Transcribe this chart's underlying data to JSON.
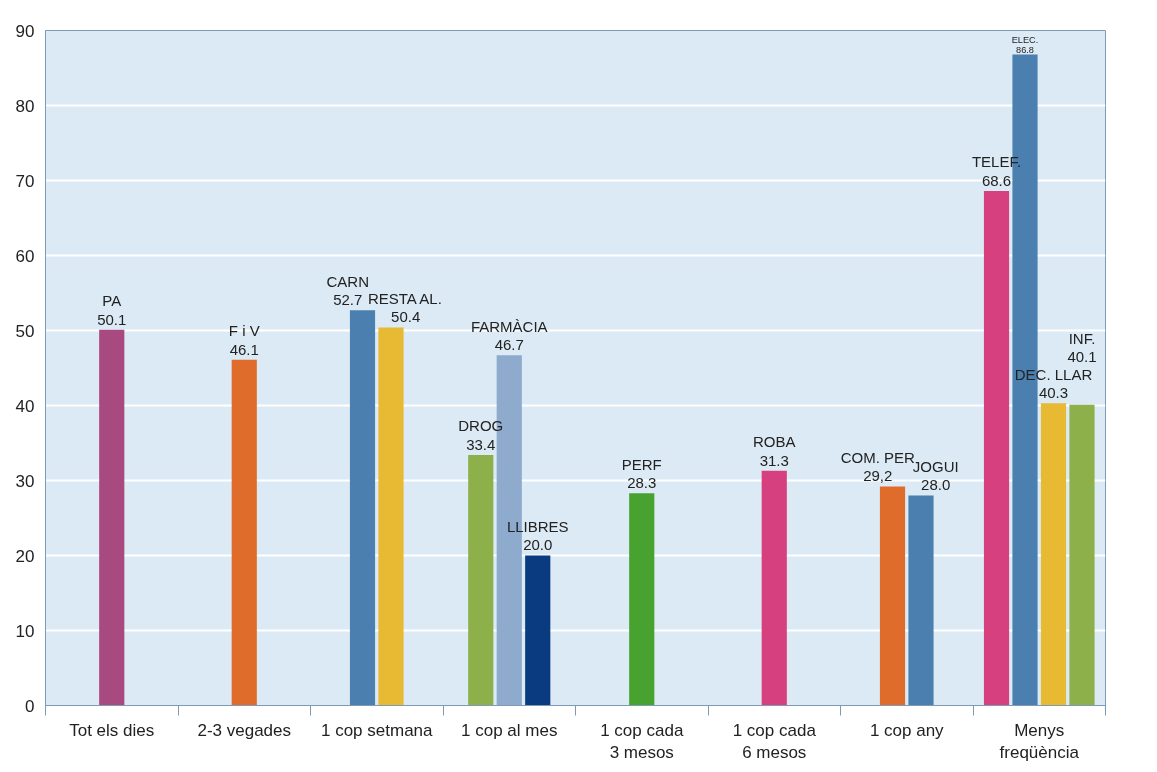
{
  "chart_data": {
    "type": "bar",
    "categories": [
      "Tot els dies",
      "2-3 vegades",
      "1 cop setmana",
      "1 cop al mes",
      "1 cop cada\n3 mesos",
      "1 cop cada\n6 mesos",
      "1 cop any",
      "Menys\nfreqüència"
    ],
    "series": [
      {
        "values": [
          50.1,
          46.1,
          52.7,
          33.4,
          28.3,
          31.3,
          29.2,
          68.6
        ],
        "colors": [
          "#a8497f",
          "#e06c2c",
          "#4a7fb0",
          "#8db04a",
          "#47a22f",
          "#d6407e",
          "#e06c2c",
          "#d6407e"
        ],
        "value_labels": [
          "PA\n50.1",
          "F i V\n46.1",
          "CARN\n52.7",
          "DROG\n33.4",
          "PERF\n28.3",
          "ROBA\n31.3",
          "COM. PER\n29,2",
          "TELEF.\n68.6"
        ]
      },
      {
        "values": [
          null,
          null,
          50.4,
          46.7,
          null,
          null,
          28.0,
          86.8
        ],
        "colors": [
          null,
          null,
          "#e8b932",
          "#8eaacc",
          null,
          null,
          "#4a7fb0",
          "#4a7fb0"
        ],
        "value_labels": [
          null,
          null,
          "RESTA AL.\n50.4",
          "FARMÀCIA\n46.7",
          null,
          null,
          "JOGUI\n28.0",
          "ELEC.\n86.8"
        ]
      },
      {
        "values": [
          null,
          null,
          null,
          20.0,
          null,
          null,
          null,
          40.3
        ],
        "colors": [
          null,
          null,
          null,
          "#0a3a80",
          null,
          null,
          null,
          "#e8b932"
        ],
        "value_labels": [
          null,
          null,
          null,
          "LLIBRES\n20.0",
          null,
          null,
          null,
          "DEC. LLAR\n40.3"
        ]
      },
      {
        "values": [
          null,
          null,
          null,
          null,
          null,
          null,
          null,
          40.1
        ],
        "colors": [
          null,
          null,
          null,
          null,
          null,
          null,
          null,
          "#8db04a"
        ],
        "value_labels": [
          null,
          null,
          null,
          null,
          null,
          null,
          null,
          "INF.\n40.1"
        ]
      }
    ],
    "ylim": [
      0,
      90
    ],
    "yticks": [
      0,
      10,
      20,
      30,
      40,
      50,
      60,
      70,
      80,
      90
    ],
    "grid": "y"
  }
}
